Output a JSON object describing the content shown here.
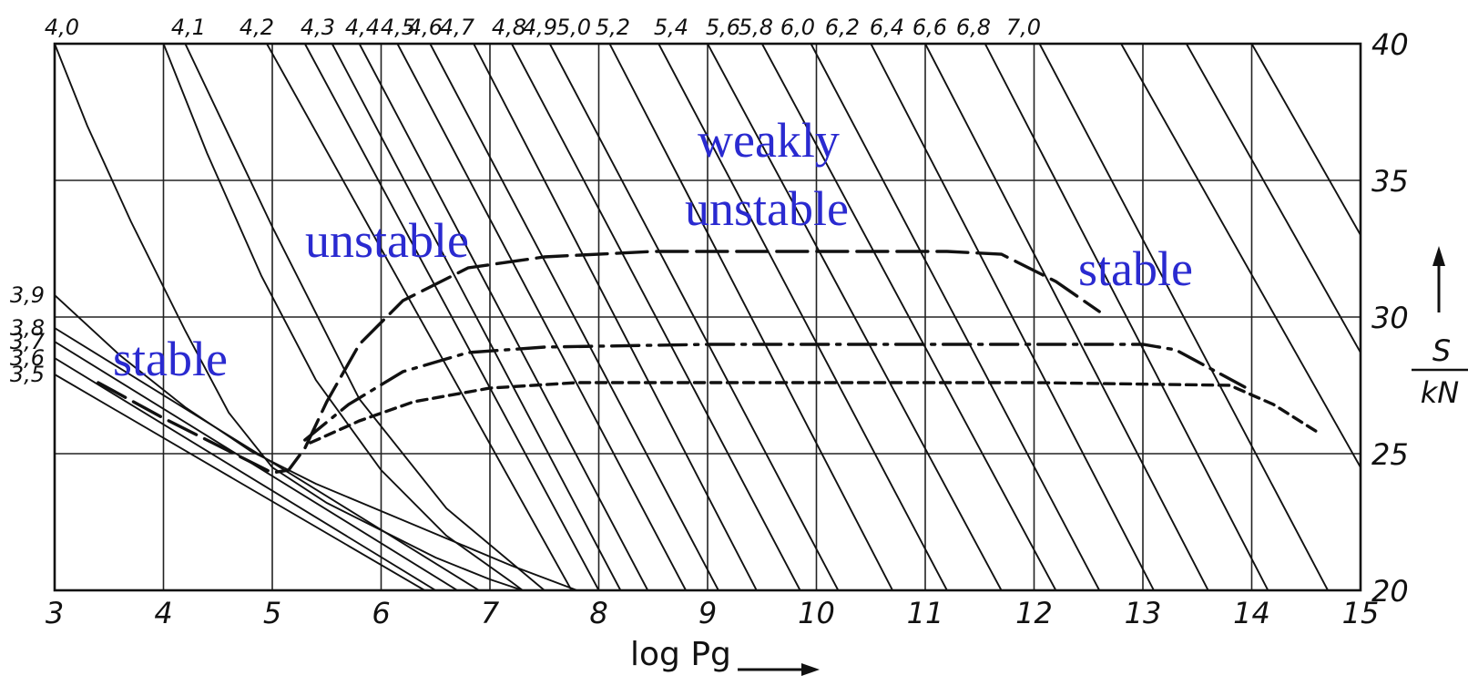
{
  "chart_data": {
    "type": "line",
    "xlabel": "log Pg",
    "ylabel_numerator": "S",
    "ylabel_denominator": "kN",
    "xlim": [
      3,
      15
    ],
    "ylim": [
      20,
      40
    ],
    "x_ticks": [
      "3",
      "4",
      "5",
      "6",
      "7",
      "8",
      "9",
      "10",
      "11",
      "12",
      "13",
      "14",
      "15"
    ],
    "y_ticks": [
      "20",
      "25",
      "30",
      "35",
      "40"
    ],
    "grid": true,
    "isolines": [
      {
        "label": "4,0",
        "label_pos": "top",
        "points": [
          [
            3,
            40
          ],
          [
            3.3,
            37
          ],
          [
            3.7,
            33.5
          ],
          [
            4.2,
            29.5
          ],
          [
            4.6,
            26.5
          ],
          [
            5,
            24.5
          ],
          [
            5.5,
            23.2
          ],
          [
            6,
            22.2
          ],
          [
            6.5,
            21.2
          ],
          [
            7,
            20.4
          ],
          [
            7.3,
            20
          ]
        ]
      },
      {
        "label": "4,1",
        "label_pos": "top",
        "points": [
          [
            4.0,
            40
          ],
          [
            4.4,
            36
          ],
          [
            4.9,
            31.5
          ],
          [
            5.4,
            27.7
          ],
          [
            6,
            24.4
          ],
          [
            6.6,
            22
          ],
          [
            7.2,
            20.3
          ],
          [
            7.3,
            20
          ]
        ]
      },
      {
        "label": "4,2",
        "label_pos": "top",
        "points": [
          [
            4.2,
            40
          ],
          [
            5.0,
            33.3
          ],
          [
            5.8,
            27
          ],
          [
            6.6,
            23
          ],
          [
            7.5,
            20
          ]
        ]
      },
      {
        "label": "4,3",
        "label_pos": "top",
        "points": [
          [
            4.95,
            40
          ],
          [
            7.75,
            20
          ]
        ]
      },
      {
        "label": "4,4",
        "label_pos": "top",
        "points": [
          [
            5.3,
            40
          ],
          [
            8.0,
            20
          ]
        ]
      },
      {
        "label": "4,5",
        "label_pos": "top",
        "points": [
          [
            5.55,
            40
          ],
          [
            8.2,
            20
          ]
        ]
      },
      {
        "label": "4,6",
        "label_pos": "top",
        "points": [
          [
            5.8,
            40
          ],
          [
            8.45,
            20
          ]
        ]
      },
      {
        "label": "4,7",
        "label_pos": "top",
        "points": [
          [
            6.15,
            40
          ],
          [
            8.8,
            20
          ]
        ]
      },
      {
        "label": "4,8",
        "label_pos": "top",
        "points": [
          [
            6.45,
            40
          ],
          [
            9.1,
            20
          ]
        ]
      },
      {
        "label": "4,9",
        "label_pos": "top",
        "points": [
          [
            6.85,
            40
          ],
          [
            9.45,
            20
          ]
        ]
      },
      {
        "label": "5,0",
        "label_pos": "top",
        "points": [
          [
            7.2,
            40
          ],
          [
            9.85,
            20
          ]
        ]
      },
      {
        "label": "5,2",
        "label_pos": "top",
        "points": [
          [
            7.55,
            40
          ],
          [
            10.2,
            20
          ]
        ]
      },
      {
        "label": "5,4",
        "label_pos": "top",
        "points": [
          [
            8.1,
            40
          ],
          [
            10.7,
            20
          ]
        ]
      },
      {
        "label": "5,6",
        "label_pos": "top",
        "points": [
          [
            8.55,
            40
          ],
          [
            11.2,
            20
          ]
        ]
      },
      {
        "label": "5,8",
        "label_pos": "top",
        "points": [
          [
            9.0,
            40
          ],
          [
            11.7,
            20
          ]
        ]
      },
      {
        "label": "6,0",
        "label_pos": "top",
        "points": [
          [
            9.5,
            40
          ],
          [
            12.2,
            20
          ]
        ]
      },
      {
        "label": "6,2",
        "label_pos": "top",
        "points": [
          [
            9.95,
            40
          ],
          [
            12.6,
            20
          ]
        ]
      },
      {
        "label": "6,4",
        "label_pos": "top",
        "points": [
          [
            10.5,
            40
          ],
          [
            13.1,
            20
          ]
        ]
      },
      {
        "label": "6,6",
        "label_pos": "top",
        "points": [
          [
            11.0,
            40
          ],
          [
            13.6,
            20
          ]
        ]
      },
      {
        "label": "6,8",
        "label_pos": "top",
        "points": [
          [
            11.55,
            40
          ],
          [
            14.15,
            20
          ]
        ]
      },
      {
        "label": "7,0",
        "label_pos": "top",
        "points": [
          [
            12.05,
            40
          ],
          [
            14.7,
            20
          ]
        ]
      },
      {
        "label": "",
        "label_pos": "none",
        "points": [
          [
            12.8,
            40
          ],
          [
            15,
            24.5
          ]
        ]
      },
      {
        "label": "",
        "label_pos": "none",
        "points": [
          [
            13.4,
            40
          ],
          [
            15,
            28.7
          ]
        ]
      },
      {
        "label": "",
        "label_pos": "none",
        "points": [
          [
            14.0,
            40
          ],
          [
            15,
            33
          ]
        ]
      },
      {
        "label": "3,9",
        "label_pos": "left",
        "points": [
          [
            3,
            30.8
          ],
          [
            3.6,
            28.6
          ],
          [
            4.2,
            26.7
          ],
          [
            4.8,
            25.1
          ],
          [
            5.4,
            23.9
          ],
          [
            6,
            22.9
          ],
          [
            6.6,
            21.9
          ],
          [
            7.2,
            20.9
          ],
          [
            7.8,
            20
          ]
        ]
      },
      {
        "label": "3,8",
        "label_pos": "left",
        "points": [
          [
            3,
            29.6
          ],
          [
            6.9,
            20
          ]
        ]
      },
      {
        "label": "3,7",
        "label_pos": "left",
        "points": [
          [
            3,
            29.1
          ],
          [
            6.7,
            20
          ]
        ]
      },
      {
        "label": "3,6",
        "label_pos": "left",
        "points": [
          [
            3,
            28.5
          ],
          [
            6.5,
            20
          ]
        ]
      },
      {
        "label": "3,5",
        "label_pos": "left",
        "points": [
          [
            3,
            27.9
          ],
          [
            6.4,
            20
          ]
        ]
      }
    ],
    "series": [
      {
        "style": "long-dash",
        "points": [
          [
            3.4,
            27.6
          ],
          [
            4.0,
            26.3
          ],
          [
            4.6,
            25.1
          ],
          [
            5.0,
            24.3
          ],
          [
            5.15,
            24.4
          ],
          [
            5.3,
            25.2
          ],
          [
            5.5,
            26.9
          ],
          [
            5.8,
            29
          ],
          [
            6.2,
            30.6
          ],
          [
            6.8,
            31.8
          ],
          [
            7.5,
            32.2
          ],
          [
            8.5,
            32.4
          ],
          [
            10,
            32.4
          ],
          [
            11.2,
            32.4
          ],
          [
            11.7,
            32.3
          ],
          [
            12.2,
            31.3
          ],
          [
            12.6,
            30.2
          ]
        ]
      },
      {
        "style": "dash-dot",
        "points": [
          [
            5.3,
            25.5
          ],
          [
            5.7,
            26.8
          ],
          [
            6.2,
            28
          ],
          [
            6.8,
            28.7
          ],
          [
            7.5,
            28.9
          ],
          [
            9,
            29
          ],
          [
            11,
            29
          ],
          [
            13,
            29
          ],
          [
            13.3,
            28.8
          ],
          [
            14.0,
            27.3
          ]
        ]
      },
      {
        "style": "short-dash",
        "points": [
          [
            5.35,
            25.4
          ],
          [
            5.8,
            26.2
          ],
          [
            6.3,
            26.9
          ],
          [
            7,
            27.4
          ],
          [
            7.8,
            27.6
          ],
          [
            10,
            27.6
          ],
          [
            12,
            27.6
          ],
          [
            13.8,
            27.5
          ],
          [
            14.2,
            26.8
          ],
          [
            14.6,
            25.8
          ]
        ]
      }
    ],
    "annotations": [
      "stable",
      "unstable",
      "weakly",
      "unstable",
      "stable"
    ]
  }
}
